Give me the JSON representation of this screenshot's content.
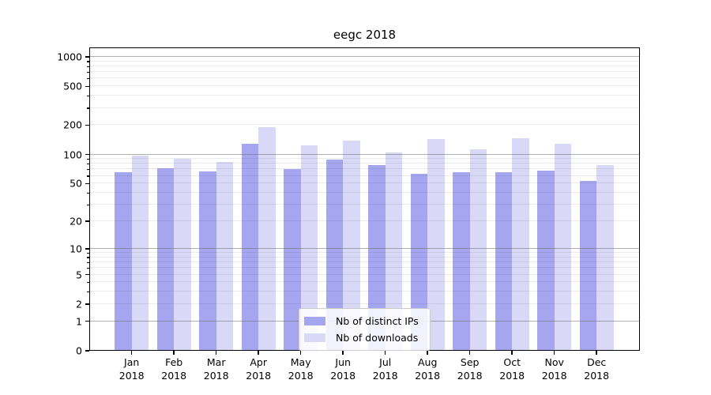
{
  "chart_data": {
    "type": "bar",
    "title": "eegc 2018",
    "categories": [
      "Jan",
      "Feb",
      "Mar",
      "Apr",
      "May",
      "Jun",
      "Jul",
      "Aug",
      "Sep",
      "Oct",
      "Nov",
      "Dec"
    ],
    "year_label": "2018",
    "series": [
      {
        "name": "Nb of distinct IPs",
        "color": "#a6a6f0",
        "values": [
          66,
          72,
          67,
          130,
          70,
          88,
          78,
          63,
          66,
          66,
          68,
          53
        ]
      },
      {
        "name": "Nb of downloads",
        "color": "#d9d9f7",
        "values": [
          98,
          91,
          84,
          190,
          124,
          140,
          105,
          143,
          113,
          148,
          130,
          77
        ]
      }
    ],
    "yscale": "log(v+1)",
    "yticks": [
      0,
      1,
      2,
      5,
      10,
      20,
      50,
      100,
      200,
      500,
      1000
    ],
    "ylim": [
      0,
      1250
    ],
    "xlabel": "",
    "ylabel": "",
    "grid": "on",
    "legend_position": "lower-center"
  }
}
